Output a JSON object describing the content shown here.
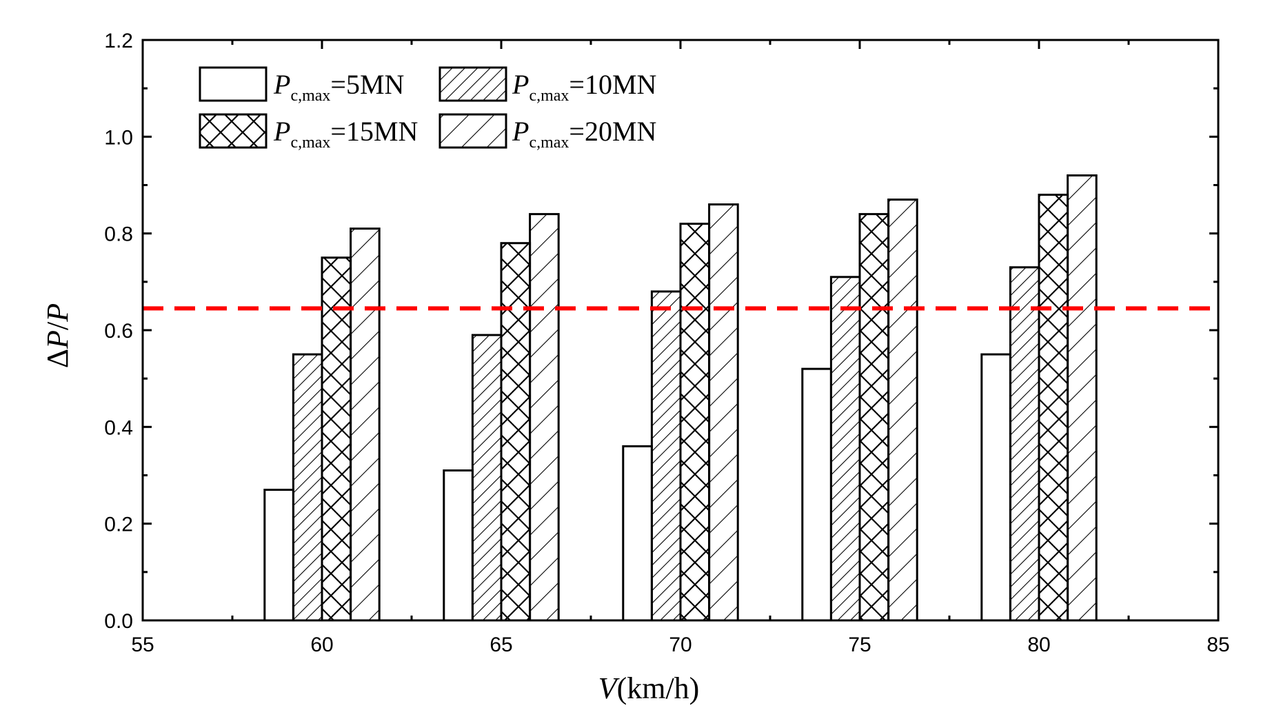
{
  "chart_data": {
    "type": "bar",
    "title": "",
    "xlabel": {
      "var": "V",
      "unit": "(km/h)"
    },
    "ylabel": {
      "delta": "Δ",
      "var1": "P",
      "slash": "/",
      "var2": "P"
    },
    "xlim": [
      55,
      85
    ],
    "ylim": [
      0,
      1.2
    ],
    "x_ticks": [
      55,
      60,
      65,
      70,
      75,
      80,
      85
    ],
    "y_ticks": [
      "0.0",
      "0.2",
      "0.4",
      "0.6",
      "0.8",
      "1.0",
      "1.2"
    ],
    "categories": [
      60,
      65,
      70,
      75,
      80
    ],
    "series": [
      {
        "name": "P c,max =5MN",
        "pattern": "none",
        "values": [
          0.27,
          0.31,
          0.36,
          0.52,
          0.55
        ]
      },
      {
        "name": "P c,max =10MN",
        "pattern": "dense-diagonal",
        "values": [
          0.55,
          0.59,
          0.68,
          0.71,
          0.73
        ]
      },
      {
        "name": "P c,max =15MN",
        "pattern": "crosshatch",
        "values": [
          0.75,
          0.78,
          0.82,
          0.84,
          0.88
        ]
      },
      {
        "name": "P c,max =20MN",
        "pattern": "sparse-diagonal",
        "values": [
          0.81,
          0.84,
          0.86,
          0.87,
          0.92
        ]
      }
    ],
    "reference_line": {
      "y": 0.645,
      "color": "#ff0000",
      "style": "dashed"
    },
    "legend": {
      "placement": "top-left",
      "entries": [
        {
          "var": "P",
          "sub": "c,max",
          "rest": "=5MN"
        },
        {
          "var": "P",
          "sub": "c,max",
          "rest": "=10MN"
        },
        {
          "var": "P",
          "sub": "c,max",
          "rest": "=15MN"
        },
        {
          "var": "P",
          "sub": "c,max",
          "rest": "=20MN"
        }
      ]
    },
    "grid": false
  }
}
